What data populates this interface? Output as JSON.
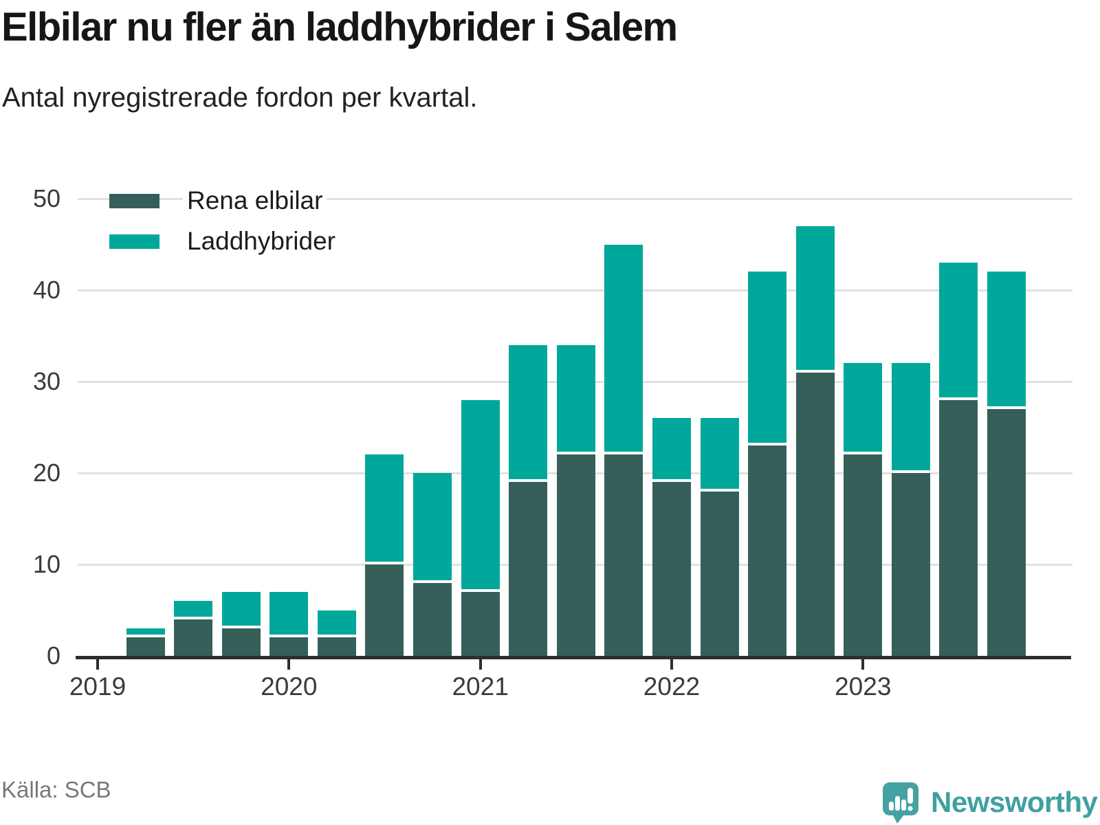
{
  "header": {
    "title": "Elbilar nu fler än laddhybrider i Salem",
    "subtitle": "Antal nyregistrerade fordon per kvartal."
  },
  "footer": {
    "source": "Källa: SCB",
    "brand": "Newsworthy",
    "logo_icon": "newsworthy-speech-bubble-bar-chart-icon"
  },
  "colors": {
    "electric_series": "#355f58",
    "hybrid_series": "#00a79b",
    "axis_line": "#2e2e2e",
    "gridline": "#e1e1e1",
    "tick_label": "#3a3a3a",
    "title_text": "#161616",
    "source_text": "#76787a",
    "brand_teal": "#3fa0a1",
    "background": "#ffffff"
  },
  "chart_data": {
    "type": "bar",
    "stacked": true,
    "title": "Elbilar nu fler än laddhybrider i Salem",
    "subtitle": "Antal nyregistrerade fordon per kvartal.",
    "xlabel": "",
    "ylabel": "",
    "categories": [
      "2019 Q1",
      "2019 Q2",
      "2019 Q3",
      "2019 Q4",
      "2020 Q1",
      "2020 Q2",
      "2020 Q3",
      "2020 Q4",
      "2021 Q1",
      "2021 Q2",
      "2021 Q3",
      "2021 Q4",
      "2022 Q1",
      "2022 Q2",
      "2022 Q3",
      "2022 Q4",
      "2023 Q1",
      "2023 Q2",
      "2023 Q3",
      "2023 Q4"
    ],
    "series": [
      {
        "name": "Rena elbilar",
        "color": "#355f58",
        "values": [
          0,
          2,
          4,
          3,
          2,
          2,
          10,
          8,
          7,
          19,
          22,
          22,
          19,
          18,
          23,
          31,
          22,
          20,
          28,
          27
        ]
      },
      {
        "name": "Laddhybrider",
        "color": "#00a79b",
        "values": [
          0,
          1,
          2,
          4,
          5,
          3,
          12,
          12,
          21,
          15,
          12,
          23,
          7,
          8,
          19,
          16,
          10,
          12,
          15,
          15
        ]
      }
    ],
    "totals": [
      0,
      3,
      6,
      7,
      7,
      5,
      22,
      20,
      28,
      34,
      34,
      45,
      26,
      26,
      42,
      47,
      32,
      32,
      43,
      42
    ],
    "x_tick_labels": [
      "2019",
      "2020",
      "2021",
      "2022",
      "2023"
    ],
    "x_tick_positions": [
      0,
      4,
      8,
      12,
      16
    ],
    "y_ticks": [
      0,
      10,
      20,
      30,
      40,
      50
    ],
    "ylim": [
      0,
      52
    ],
    "grid": "horizontal",
    "legend_position": "top-left",
    "source": "Källa: SCB"
  }
}
